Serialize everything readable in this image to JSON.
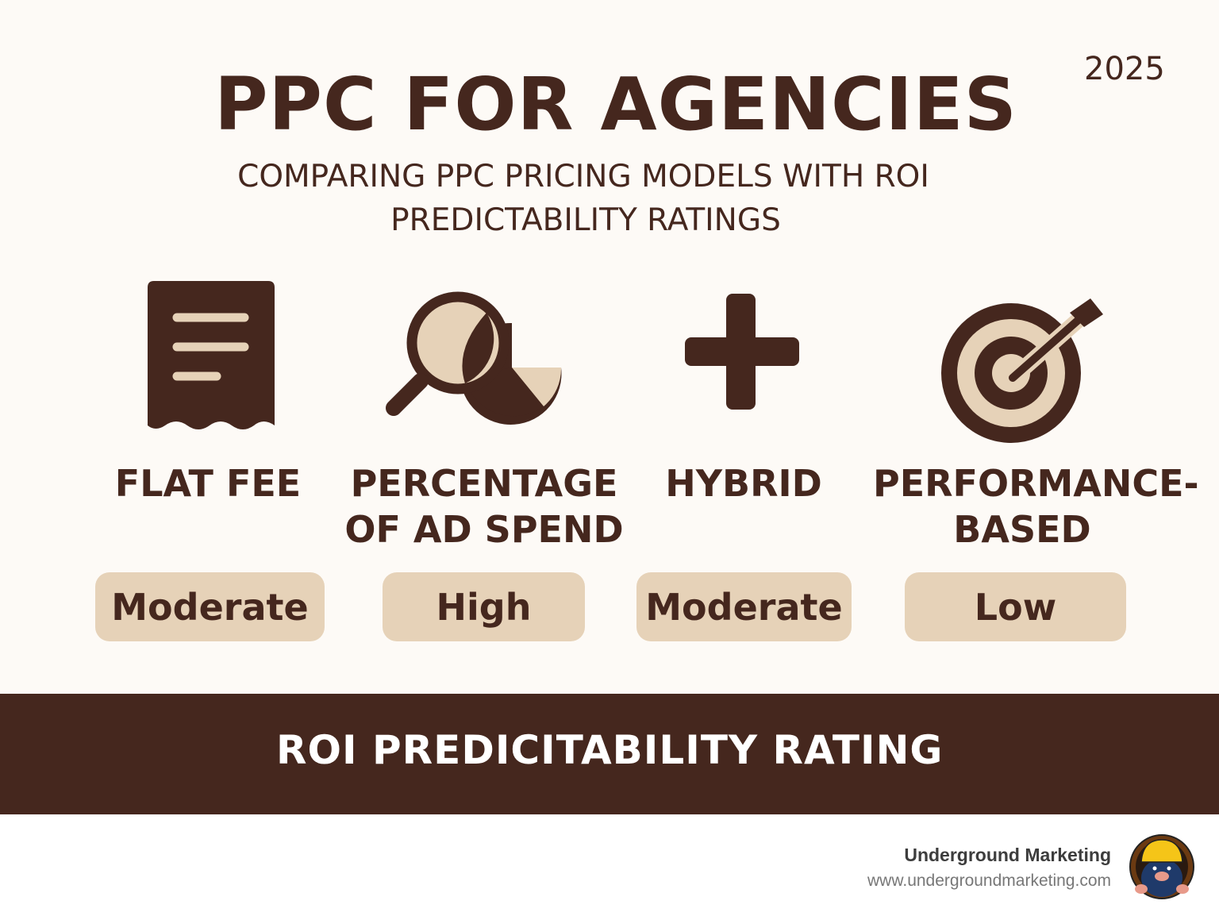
{
  "header": {
    "title": "PPC FOR AGENCIES",
    "year": "2025",
    "subtitle_line1": "COMPARING PPC PRICING MODELS WITH ROI",
    "subtitle_line2": "PREDICTABILITY RATINGS"
  },
  "models": [
    {
      "icon": "receipt-icon",
      "label_line1": "FLAT FEE",
      "label_line2": "",
      "rating": "Moderate"
    },
    {
      "icon": "magnifier-pie-chart-icon",
      "label_line1": "PERCENTAGE",
      "label_line2": "OF AD SPEND",
      "rating": "High"
    },
    {
      "icon": "plus-icon",
      "label_line1": "HYBRID",
      "label_line2": "",
      "rating": "Moderate"
    },
    {
      "icon": "target-arrow-icon",
      "label_line1": "PERFORMANCE-",
      "label_line2": "BASED",
      "rating": "Low"
    }
  ],
  "band": {
    "text": "ROI PREDICITABILITY RATING"
  },
  "footer": {
    "brand": "Underground Marketing",
    "url": "www.undergroundmarketing.com",
    "logo": "Underground Marketing mole mascot"
  },
  "colors": {
    "dark": "#45271e",
    "tan": "#e6d2b8",
    "background": "#fdfaf6"
  }
}
